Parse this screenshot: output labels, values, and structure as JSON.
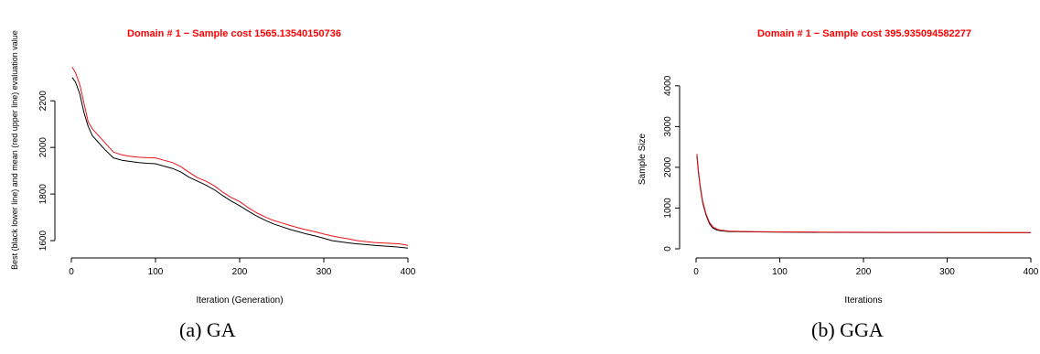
{
  "captions": {
    "left": "(a) GA",
    "right": "(b) GGA"
  },
  "colors": {
    "best_line": "#000000",
    "mean_line": "#e8151b",
    "title": "#ff0000",
    "axis": "#000000"
  },
  "chart_data": [
    {
      "type": "line",
      "title": "Domain # 1  − Sample cost 1565.13540150736",
      "xlabel": "Iteration (Generation)",
      "ylabel": "Best (black lower line) and mean (red upper line) evaluation value",
      "xlim": [
        0,
        400
      ],
      "ylim": [
        1565,
        2350
      ],
      "xticks": [
        0,
        100,
        200,
        300,
        400
      ],
      "yticks": [
        1600,
        1800,
        2000,
        2200
      ],
      "grid": false,
      "series": [
        {
          "color": "#000000",
          "x": [
            1,
            5,
            10,
            15,
            20,
            25,
            30,
            40,
            50,
            60,
            70,
            80,
            90,
            100,
            110,
            120,
            130,
            140,
            150,
            160,
            170,
            180,
            190,
            200,
            210,
            220,
            230,
            240,
            250,
            260,
            270,
            280,
            290,
            300,
            310,
            320,
            330,
            340,
            350,
            360,
            370,
            380,
            390,
            400
          ],
          "values": [
            2300,
            2280,
            2230,
            2150,
            2090,
            2050,
            2030,
            1990,
            1955,
            1945,
            1940,
            1935,
            1932,
            1930,
            1920,
            1910,
            1895,
            1872,
            1855,
            1838,
            1818,
            1793,
            1770,
            1750,
            1727,
            1706,
            1688,
            1672,
            1660,
            1648,
            1638,
            1628,
            1620,
            1610,
            1600,
            1595,
            1590,
            1586,
            1583,
            1580,
            1577,
            1575,
            1572,
            1568
          ]
        },
        {
          "color": "#e8151b",
          "x": [
            1,
            5,
            10,
            15,
            20,
            25,
            30,
            40,
            50,
            60,
            70,
            80,
            90,
            100,
            110,
            120,
            130,
            140,
            150,
            160,
            170,
            180,
            190,
            200,
            210,
            220,
            230,
            240,
            250,
            260,
            270,
            280,
            290,
            300,
            310,
            320,
            330,
            340,
            350,
            360,
            370,
            380,
            390,
            400
          ],
          "values": [
            2345,
            2320,
            2270,
            2190,
            2110,
            2080,
            2060,
            2020,
            1980,
            1968,
            1962,
            1958,
            1956,
            1955,
            1945,
            1935,
            1918,
            1893,
            1870,
            1855,
            1835,
            1808,
            1785,
            1768,
            1742,
            1720,
            1702,
            1687,
            1676,
            1665,
            1655,
            1646,
            1638,
            1628,
            1620,
            1613,
            1607,
            1600,
            1596,
            1592,
            1590,
            1588,
            1586,
            1580
          ]
        }
      ]
    },
    {
      "type": "line",
      "title": "Domain # 1  − Sample cost 395.935094582277",
      "xlabel": "Iterations",
      "ylabel": "Sample Size",
      "xlim": [
        0,
        400
      ],
      "ylim": [
        0,
        4400
      ],
      "xticks": [
        0,
        100,
        200,
        300,
        400
      ],
      "yticks": [
        0,
        1000,
        2000,
        3000,
        4000
      ],
      "grid": false,
      "series": [
        {
          "color": "#000000",
          "x": [
            1,
            3,
            5,
            8,
            12,
            16,
            20,
            25,
            30,
            40,
            50,
            70,
            100,
            150,
            200,
            250,
            300,
            350,
            400
          ],
          "values": [
            2280,
            1850,
            1500,
            1120,
            820,
            620,
            510,
            460,
            440,
            425,
            420,
            415,
            410,
            405,
            402,
            400,
            398,
            397,
            396
          ]
        },
        {
          "color": "#e8151b",
          "x": [
            1,
            3,
            5,
            8,
            12,
            16,
            20,
            25,
            30,
            40,
            50,
            70,
            100,
            150,
            200,
            250,
            300,
            350,
            400
          ],
          "values": [
            2330,
            1900,
            1540,
            1160,
            850,
            650,
            540,
            480,
            455,
            435,
            428,
            420,
            415,
            410,
            406,
            404,
            402,
            400,
            400
          ]
        }
      ]
    }
  ]
}
